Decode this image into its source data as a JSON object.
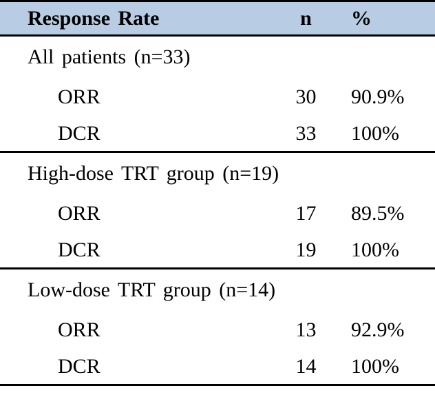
{
  "colors": {
    "header_background": "#b8cce4",
    "border": "#000000",
    "text": "#000000"
  },
  "table": {
    "header": {
      "label": "Response Rate",
      "n": "n",
      "pct": "%"
    },
    "sections": [
      {
        "label": "All patients (n=33)",
        "rows": [
          {
            "label": "ORR",
            "n": "30",
            "pct": "90.9%"
          },
          {
            "label": "DCR",
            "n": "33",
            "pct": "100%"
          }
        ]
      },
      {
        "label": "High-dose TRT group (n=19)",
        "rows": [
          {
            "label": "ORR",
            "n": "17",
            "pct": "89.5%"
          },
          {
            "label": "DCR",
            "n": "19",
            "pct": "100%"
          }
        ]
      },
      {
        "label": "Low-dose TRT group (n=14)",
        "rows": [
          {
            "label": "ORR",
            "n": "13",
            "pct": "92.9%"
          },
          {
            "label": "DCR",
            "n": "14",
            "pct": "100%"
          }
        ]
      }
    ]
  },
  "chart_data": {
    "type": "table",
    "columns": [
      "Response Rate",
      "n",
      "%"
    ],
    "rows": [
      [
        "All patients (n=33)",
        "",
        ""
      ],
      [
        "ORR",
        30,
        "90.9%"
      ],
      [
        "DCR",
        33,
        "100%"
      ],
      [
        "High-dose TRT group (n=19)",
        "",
        ""
      ],
      [
        "ORR",
        17,
        "89.5%"
      ],
      [
        "DCR",
        19,
        "100%"
      ],
      [
        "Low-dose TRT group (n=14)",
        "",
        ""
      ],
      [
        "ORR",
        13,
        "92.9%"
      ],
      [
        "DCR",
        14,
        "100%"
      ]
    ]
  }
}
